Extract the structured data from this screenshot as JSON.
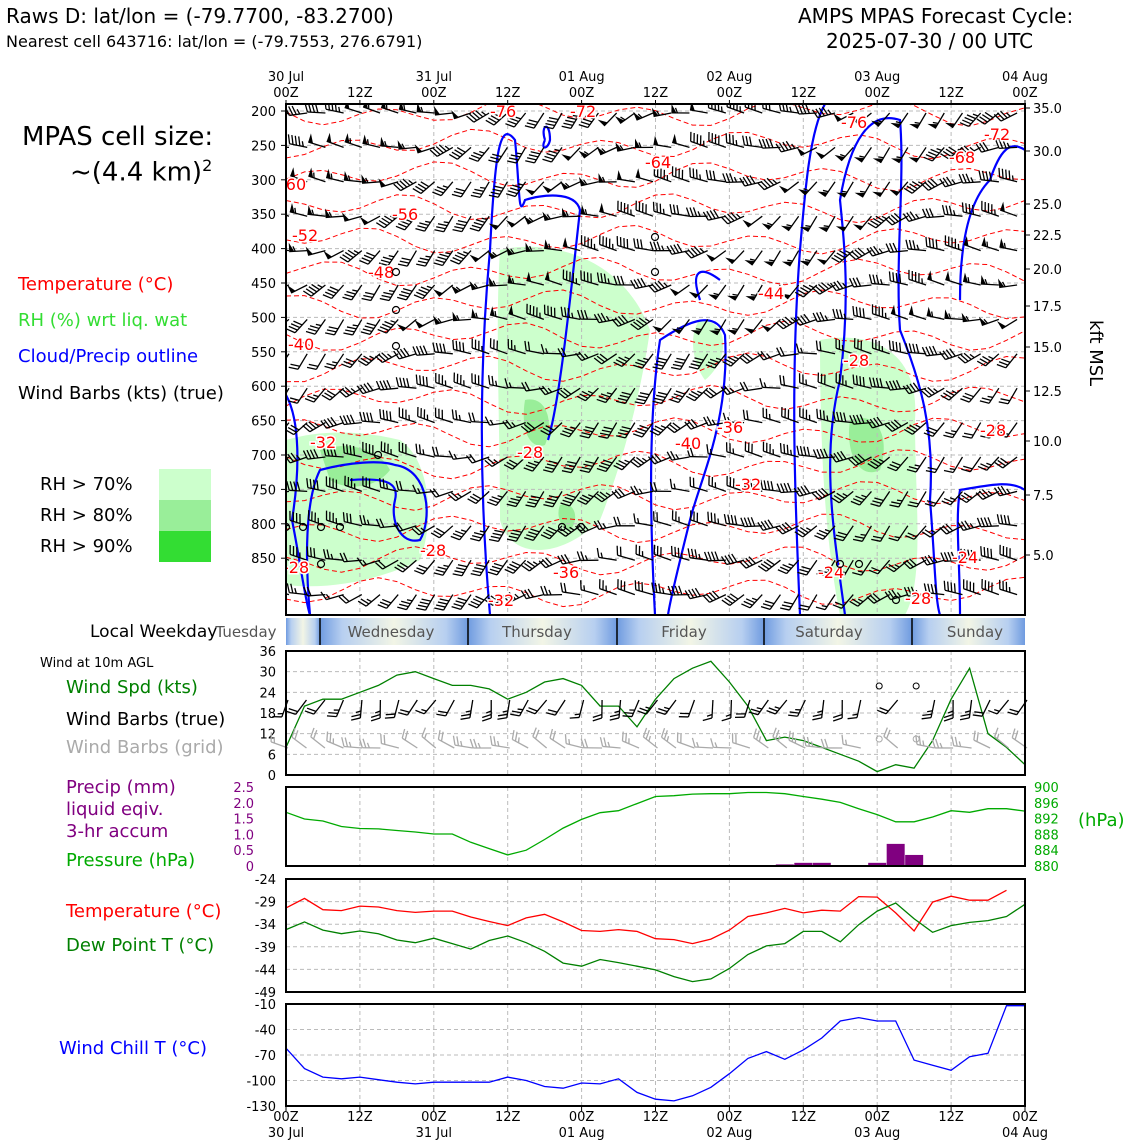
{
  "header": {
    "station_line": "Raws D: lat/lon = (-79.7700, -83.2700)",
    "cell_line": "Nearest cell 643716: lat/lon = (-79.7553, 276.6791)",
    "cycle_title": "AMPS MPAS Forecast Cycle:",
    "cycle_time": "2025-07-30 / 00 UTC"
  },
  "cell_size": {
    "line1": "MPAS cell size:",
    "line2": "~(4.4 km)",
    "sup": "2"
  },
  "legend": {
    "temperature": "Temperature (°C)",
    "rh": "RH (%) wrt liq. wat",
    "cloud": "Cloud/Precip outline",
    "wind": "Wind Barbs (kts) (true)",
    "rh70": "RH > 70%",
    "rh80": "RH > 80%",
    "rh90": "RH > 90%"
  },
  "colors": {
    "temperature": "#ff0000",
    "rh_label": "#33dd33",
    "cloud": "#0000ff",
    "rh70": "#ccffcc",
    "rh80": "#99ee99",
    "rh90": "#33dd33",
    "wind_speed": "#008000",
    "grid_barbs": "#aaaaaa",
    "precip": "#800080",
    "pressure": "#00aa00",
    "dewpoint": "#008000",
    "windchill": "#0000ff"
  },
  "top_axis": {
    "ticks": [
      "00Z",
      "12Z",
      "00Z",
      "12Z",
      "00Z",
      "12Z",
      "00Z",
      "12Z",
      "00Z",
      "12Z",
      "00Z"
    ],
    "dates": [
      "30 Jul",
      "31 Jul",
      "01 Aug",
      "02 Aug",
      "03 Aug",
      "04 Aug"
    ]
  },
  "bottom_axis": {
    "ticks": [
      "00Z",
      "12Z",
      "00Z",
      "12Z",
      "00Z",
      "12Z",
      "00Z",
      "12Z",
      "00Z",
      "12Z",
      "00Z"
    ],
    "dates": [
      "30 Jul",
      "31 Jul",
      "01 Aug",
      "02 Aug",
      "03 Aug",
      "04 Aug"
    ]
  },
  "pressure_levels": [
    "200",
    "250",
    "300",
    "350",
    "400",
    "450",
    "500",
    "550",
    "600",
    "650",
    "700",
    "750",
    "800",
    "850"
  ],
  "kft_ticks": [
    "35.0",
    "30.0",
    "25.0",
    "22.5",
    "20.0",
    "17.5",
    "15.0",
    "12.5",
    "10.0",
    "7.5",
    "5.0"
  ],
  "kft_label": "kft MSL",
  "weekday": {
    "label": "Local Weekday",
    "days": [
      "Tuesday",
      "Wednesday",
      "Thursday",
      "Friday",
      "Saturday",
      "Sunday"
    ]
  },
  "panel_labels": {
    "wind_title": "Wind at 10m AGL",
    "wind_spd": "Wind Spd (kts)",
    "wind_barbs": "Wind Barbs (true)",
    "wind_grid": "Wind Barbs (grid)",
    "precip1": "Precip (mm)",
    "precip2": "liquid eqiv.",
    "precip3": "3-hr accum",
    "pressure": "Pressure (hPa)",
    "pressure_unit": "(hPa)",
    "temp": "Temperature (°C)",
    "dew": "Dew Point T (°C)",
    "windchill": "Wind Chill T (°C)"
  },
  "isotherm_labels": [
    "-76",
    "-72",
    "-64",
    "-60",
    "-56",
    "-52",
    "-48",
    "-44",
    "-40",
    "-36",
    "-32",
    "-28",
    "-24",
    "-72",
    "-68"
  ],
  "chart_data": [
    {
      "type": "line",
      "panel": "surface wind speed",
      "x_hours": [
        0,
        3,
        6,
        9,
        12,
        15,
        18,
        21,
        24,
        27,
        30,
        33,
        36,
        39,
        42,
        45,
        48,
        51,
        54,
        57,
        60,
        63,
        66,
        69,
        72,
        75,
        78,
        81,
        84,
        87,
        90,
        93,
        96,
        99,
        102,
        105,
        108,
        111,
        114,
        117,
        120
      ],
      "series": [
        {
          "name": "Wind Spd (kts)",
          "values": [
            8,
            20,
            22,
            22,
            24,
            26,
            29,
            30,
            28,
            26,
            26,
            25,
            22,
            24,
            27,
            28,
            26,
            20,
            20,
            14,
            22,
            28,
            31,
            33,
            27,
            20,
            10,
            11,
            10,
            8,
            6,
            4,
            1,
            3,
            2,
            10,
            22,
            31,
            12,
            8,
            3
          ]
        }
      ],
      "ylim": [
        0,
        36
      ],
      "yticks": [
        "0",
        "6",
        "12",
        "18",
        "24",
        "30",
        "36"
      ]
    },
    {
      "type": "bar",
      "panel": "precip and pressure",
      "precip_hours": [
        81,
        84,
        87,
        96,
        99,
        102
      ],
      "precip_mm": [
        0.05,
        0.1,
        0.1,
        0.1,
        0.7,
        0.35
      ],
      "precip_ylim": [
        0,
        2.5
      ],
      "precip_yticks": [
        "0",
        "0.5",
        "1.0",
        "1.5",
        "2.0",
        "2.5"
      ],
      "pressure_hours": [
        0,
        3,
        6,
        9,
        12,
        15,
        18,
        21,
        24,
        27,
        30,
        33,
        36,
        39,
        42,
        45,
        48,
        51,
        54,
        57,
        60,
        63,
        66,
        69,
        72,
        75,
        78,
        81,
        84,
        87,
        90,
        93,
        96,
        99,
        102,
        105,
        108,
        111,
        114,
        117,
        120
      ],
      "pressure_hpa": [
        893.6,
        891.9,
        891.4,
        890.0,
        889.5,
        889.4,
        889.0,
        888.6,
        888.1,
        888.1,
        886.0,
        884.4,
        882.8,
        884.0,
        886.7,
        889.6,
        891.8,
        893.5,
        894.0,
        895.8,
        897.6,
        897.8,
        898.2,
        898.3,
        898.3,
        898.6,
        898.6,
        898.3,
        897.6,
        896.9,
        896.1,
        894.5,
        893.0,
        891.2,
        891.2,
        892.4,
        894.0,
        893.6,
        894.5,
        894.5,
        893.9
      ],
      "pressure_ylim": [
        880,
        900
      ],
      "pressure_yticks": [
        "880",
        "884",
        "888",
        "892",
        "896",
        "900"
      ]
    },
    {
      "type": "line",
      "panel": "temperature and dew point",
      "x_hours": [
        0,
        3,
        6,
        9,
        12,
        15,
        18,
        21,
        24,
        27,
        30,
        33,
        36,
        39,
        42,
        45,
        48,
        51,
        54,
        57,
        60,
        63,
        66,
        69,
        72,
        75,
        78,
        81,
        84,
        87,
        90,
        93,
        96,
        99,
        102,
        105,
        108,
        111,
        114,
        117,
        120
      ],
      "series": [
        {
          "name": "Temperature (°C)",
          "values": [
            -30.4,
            -28.3,
            -30.8,
            -31.0,
            -30.0,
            -30.2,
            -31.0,
            -31.4,
            -31.1,
            -31.1,
            -32.4,
            -33.4,
            -34.3,
            -32.6,
            -31.8,
            -33.5,
            -35.4,
            -35.6,
            -35.2,
            -35.6,
            -37.2,
            -37.4,
            -38.3,
            -37.3,
            -35.3,
            -32.3,
            -31.5,
            -30.5,
            -31.5,
            -30.9,
            -31.1,
            -27.9,
            -28.0,
            -31.5,
            -35.5,
            -29.1,
            -27.8,
            -28.7,
            -28.7,
            -26.5
          ],
          "x_offset": 1
        },
        {
          "name": "Dew Point T (°C)",
          "values": [
            -35.2,
            -33.5,
            -35.3,
            -36.1,
            -35.5,
            -36.1,
            -37.5,
            -38.1,
            -37.1,
            -38.3,
            -39.5,
            -37.6,
            -36.6,
            -38.1,
            -40.0,
            -42.6,
            -43.3,
            -41.8,
            -42.5,
            -43.3,
            -44.1,
            -45.6,
            -46.7,
            -46.1,
            -43.8,
            -40.7,
            -38.8,
            -38.3,
            -35.6,
            -35.6,
            -37.9,
            -34.1,
            -31.1,
            -29.3,
            -32.8,
            -35.8,
            -34.3,
            -33.6,
            -33.2,
            -32.3,
            -29.6
          ]
        }
      ],
      "ylim": [
        -49,
        -24
      ],
      "yticks": [
        "-49",
        "-44",
        "-39",
        "-34",
        "-29",
        "-24"
      ]
    },
    {
      "type": "line",
      "panel": "wind chill",
      "x_hours": [
        0,
        3,
        6,
        9,
        12,
        15,
        18,
        21,
        24,
        27,
        30,
        33,
        36,
        39,
        42,
        45,
        48,
        51,
        54,
        57,
        60,
        63,
        66,
        69,
        72,
        75,
        78,
        81,
        84,
        87,
        90,
        93,
        96,
        99,
        102,
        105,
        108,
        111,
        114,
        117,
        120
      ],
      "series": [
        {
          "name": "Wind Chill T (°C)",
          "values": [
            -62,
            -86,
            -96,
            -98,
            -96,
            -99,
            -102,
            -104,
            -102,
            -102,
            -102,
            -102,
            -96,
            -100,
            -107,
            -109,
            -103,
            -104,
            -98,
            -114,
            -122,
            -124,
            -118,
            -108,
            -92,
            -74,
            -66,
            -75,
            -64,
            -50,
            -30,
            -26,
            -30,
            -30,
            -76,
            -82,
            -88,
            -72,
            -68,
            -12,
            -12
          ]
        }
      ],
      "ylim": [
        -130,
        -10
      ],
      "yticks": [
        "-130",
        "-100",
        "-70",
        "-40",
        "-10"
      ]
    }
  ]
}
